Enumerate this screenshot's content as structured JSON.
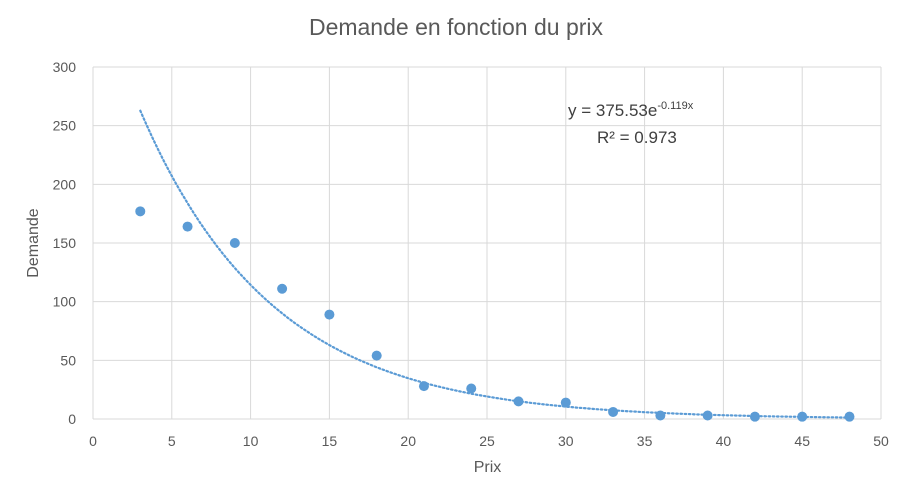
{
  "chart_data": {
    "type": "scatter",
    "title": "Demande en fonction du prix",
    "xlabel": "Prix",
    "ylabel": "Demande",
    "xlim": [
      0,
      50
    ],
    "ylim": [
      0,
      300
    ],
    "xticks": [
      "0",
      "5",
      "10",
      "15",
      "20",
      "25",
      "30",
      "35",
      "40",
      "45",
      "50"
    ],
    "yticks": [
      "0",
      "50",
      "100",
      "150",
      "200",
      "250",
      "300"
    ],
    "grid": true,
    "points": [
      {
        "x": 3,
        "y": 177
      },
      {
        "x": 6,
        "y": 164
      },
      {
        "x": 9,
        "y": 150
      },
      {
        "x": 12,
        "y": 111
      },
      {
        "x": 15,
        "y": 89
      },
      {
        "x": 18,
        "y": 54
      },
      {
        "x": 21,
        "y": 28
      },
      {
        "x": 24,
        "y": 26
      },
      {
        "x": 27,
        "y": 15
      },
      {
        "x": 30,
        "y": 14
      },
      {
        "x": 33,
        "y": 6
      },
      {
        "x": 36,
        "y": 3
      },
      {
        "x": 39,
        "y": 3
      },
      {
        "x": 42,
        "y": 2
      },
      {
        "x": 45,
        "y": 2
      },
      {
        "x": 48,
        "y": 2
      }
    ],
    "trendline": {
      "type": "exponential",
      "a": 375.53,
      "b": -0.119,
      "x_range": [
        3,
        48
      ],
      "equation_prefix": "y = 375.53e",
      "equation_exponent": "-0.119x",
      "r_squared_text": "R² = 0.973"
    },
    "colors": {
      "points": "#5b9bd5",
      "trendline": "#5b9bd5",
      "grid": "#d9d9d9",
      "text": "#595959"
    }
  }
}
